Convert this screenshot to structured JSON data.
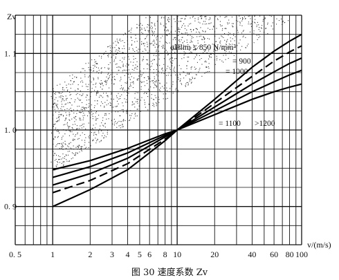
{
  "chart_data": {
    "type": "line",
    "x_scale": "log",
    "xlim": [
      0.5,
      100
    ],
    "ylim": [
      0.85,
      1.15
    ],
    "x_ticks": [
      0.5,
      1,
      2,
      3,
      4,
      5,
      6,
      8,
      10,
      20,
      40,
      60,
      80,
      100
    ],
    "x_tick_labels": [
      "0. 5",
      "1",
      "2",
      "3",
      "4",
      "5",
      "6",
      "8",
      "10",
      "20",
      "40",
      "60",
      "80",
      "100"
    ],
    "y_ticks": [
      0.9,
      1.0,
      1.1
    ],
    "y_tick_labels": [
      "0. 9",
      "1. 0",
      "1. 1"
    ],
    "xlabel": "v/(m/s)",
    "ylabel": "Zv",
    "grid": true,
    "series": [
      {
        "name": "σHlim ≤ 850 N/mm²",
        "style": "solid",
        "points": [
          [
            1,
            0.9
          ],
          [
            2,
            0.922
          ],
          [
            4,
            0.948
          ],
          [
            8,
            0.986
          ],
          [
            10,
            1.0
          ],
          [
            20,
            1.04
          ],
          [
            40,
            1.082
          ],
          [
            60,
            1.103
          ],
          [
            80,
            1.116
          ],
          [
            100,
            1.125
          ]
        ]
      },
      {
        "name": "900",
        "style": "dashed",
        "points": [
          [
            1,
            0.918
          ],
          [
            2,
            0.934
          ],
          [
            4,
            0.956
          ],
          [
            8,
            0.988
          ],
          [
            10,
            1.0
          ],
          [
            20,
            1.035
          ],
          [
            40,
            1.07
          ],
          [
            60,
            1.09
          ],
          [
            80,
            1.102
          ],
          [
            100,
            1.11
          ]
        ]
      },
      {
        "name": "1000",
        "style": "solid",
        "points": [
          [
            1,
            0.928
          ],
          [
            2,
            0.943
          ],
          [
            4,
            0.963
          ],
          [
            8,
            0.991
          ],
          [
            10,
            1.0
          ],
          [
            20,
            1.03
          ],
          [
            40,
            1.06
          ],
          [
            60,
            1.076
          ],
          [
            80,
            1.087
          ],
          [
            100,
            1.094
          ]
        ]
      },
      {
        "name": "1100",
        "style": "solid",
        "points": [
          [
            1,
            0.938
          ],
          [
            2,
            0.952
          ],
          [
            4,
            0.97
          ],
          [
            8,
            0.993
          ],
          [
            10,
            1.0
          ],
          [
            20,
            1.025
          ],
          [
            40,
            1.05
          ],
          [
            60,
            1.063
          ],
          [
            80,
            1.072
          ],
          [
            100,
            1.078
          ]
        ]
      },
      {
        "name": ">1200",
        "style": "solid",
        "points": [
          [
            1,
            0.948
          ],
          [
            2,
            0.96
          ],
          [
            4,
            0.976
          ],
          [
            8,
            0.995
          ],
          [
            10,
            1.0
          ],
          [
            20,
            1.02
          ],
          [
            40,
            1.04
          ],
          [
            60,
            1.05
          ],
          [
            80,
            1.056
          ],
          [
            100,
            1.06
          ]
        ]
      }
    ],
    "annotations": [
      "σHlim ≤ 850 N/mm²",
      "= 900",
      "= 1000",
      "= 1100",
      ">1200"
    ],
    "scatter_band": true
  },
  "caption": "图 30   速度系数 Zv"
}
